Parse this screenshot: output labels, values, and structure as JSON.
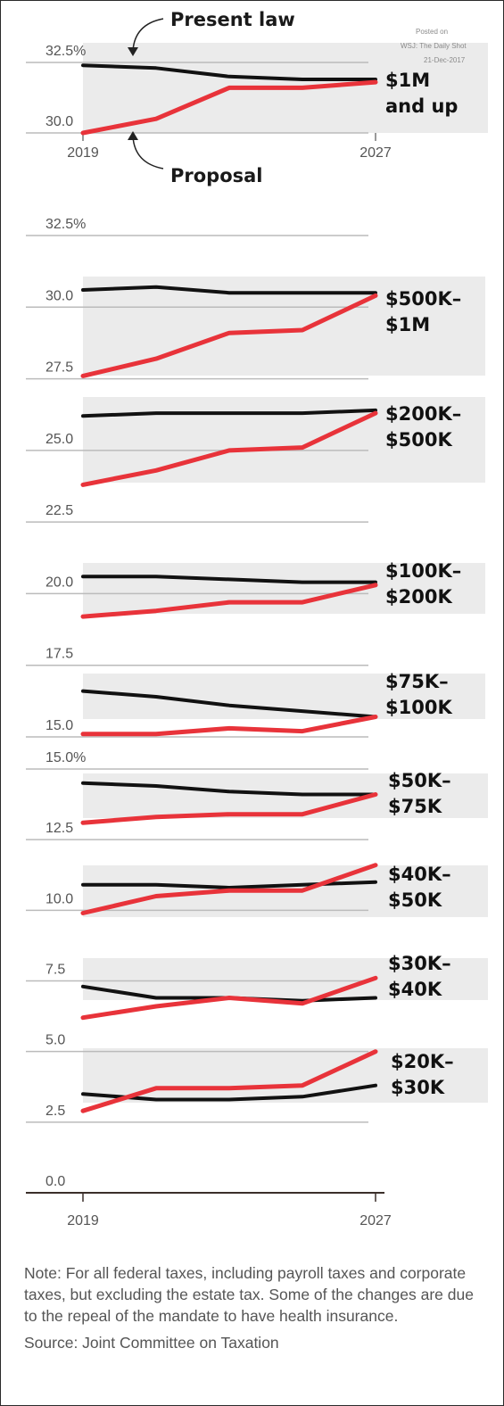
{
  "chart_data": {
    "type": "line",
    "x": [
      2019,
      2021,
      2023,
      2025,
      2027
    ],
    "x_tick_labels": [
      "2019",
      "2027"
    ],
    "series_legend": [
      "Present law",
      "Proposal"
    ],
    "colors": {
      "present_law": "#111111",
      "proposal": "#e8333a",
      "band": "#ebebeb",
      "grid": "#bbbbbb"
    },
    "panels": [
      {
        "label": [
          "$1M",
          "and up"
        ],
        "y_ticks": [
          "32.5%",
          "30.0"
        ],
        "present_law": [
          32.4,
          32.3,
          32.0,
          31.9,
          31.9
        ],
        "proposal": [
          30.0,
          30.5,
          31.6,
          31.6,
          31.8
        ]
      },
      {
        "label": [
          "$500K–",
          "$1M"
        ],
        "present_law": [
          30.6,
          30.7,
          30.5,
          30.5,
          30.5
        ],
        "proposal": [
          27.6,
          28.2,
          29.1,
          29.2,
          30.4
        ]
      },
      {
        "label": [
          "$200K–",
          "$500K"
        ],
        "present_law": [
          26.2,
          26.3,
          26.3,
          26.3,
          26.4
        ],
        "proposal": [
          23.8,
          24.3,
          25.0,
          25.1,
          26.3
        ]
      },
      {
        "label": [
          "$100K–",
          "$200K"
        ],
        "present_law": [
          20.6,
          20.6,
          20.5,
          20.4,
          20.4
        ],
        "proposal": [
          19.2,
          19.4,
          19.7,
          19.7,
          20.3
        ]
      },
      {
        "label": [
          "$75K–",
          "$100K"
        ],
        "present_law": [
          16.6,
          16.4,
          16.1,
          15.9,
          15.7
        ],
        "proposal": [
          15.1,
          15.1,
          15.3,
          15.2,
          15.7
        ]
      },
      {
        "label": [
          "$50K–",
          "$75K"
        ],
        "present_law": [
          14.5,
          14.4,
          14.2,
          14.1,
          14.1
        ],
        "proposal": [
          13.1,
          13.3,
          13.4,
          13.4,
          14.1
        ]
      },
      {
        "label": [
          "$40K–",
          "$50K"
        ],
        "present_law": [
          10.9,
          10.9,
          10.8,
          10.9,
          11.0
        ],
        "proposal": [
          9.9,
          10.5,
          10.7,
          10.7,
          11.6
        ]
      },
      {
        "label": [
          "$30K–",
          "$40K"
        ],
        "present_law": [
          7.3,
          6.9,
          6.9,
          6.8,
          6.9
        ],
        "proposal": [
          6.2,
          6.6,
          6.9,
          6.7,
          7.6
        ]
      },
      {
        "label": [
          "$20K–",
          "$30K"
        ],
        "present_law": [
          3.5,
          3.3,
          3.3,
          3.4,
          3.8
        ],
        "proposal": [
          2.9,
          3.7,
          3.7,
          3.8,
          5.0
        ]
      }
    ],
    "y_ticks_main": [
      "32.5%",
      "30.0",
      "27.5",
      "25.0",
      "22.5",
      "20.0",
      "17.5",
      "15.0",
      "15.0%",
      "12.5",
      "10.0",
      "7.5",
      "5.0",
      "2.5",
      "0.0"
    ],
    "annotations": {
      "present_law": "Present law",
      "proposal": "Proposal"
    }
  },
  "watermark": {
    "line1": "Posted on",
    "line2": "WSJ: The Daily Shot",
    "line3": "21-Dec-2017"
  },
  "note": "Note: For all federal taxes, including payroll taxes and corporate taxes, but excluding the estate tax. Some of the changes are due to the repeal of the mandate to have health insurance.",
  "source": "Source: Joint Committee on Taxation"
}
